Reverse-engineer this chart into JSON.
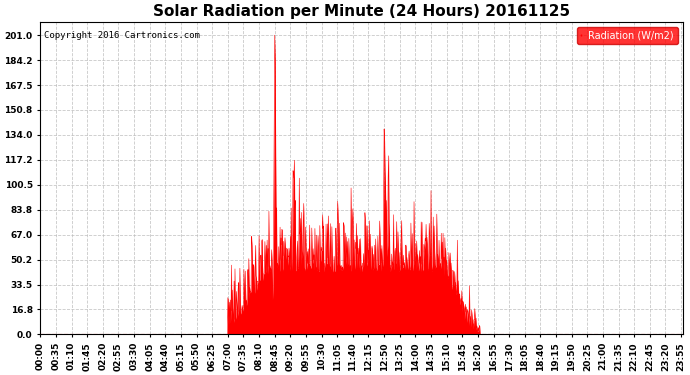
{
  "title": "Solar Radiation per Minute (24 Hours) 20161125",
  "copyright_text": "Copyright 2016 Cartronics.com",
  "ylabel": "Radiation (W/m2)",
  "yticks": [
    0.0,
    16.8,
    33.5,
    50.2,
    67.0,
    83.8,
    100.5,
    117.2,
    134.0,
    150.8,
    167.5,
    184.2,
    201.0
  ],
  "ymax": 210,
  "fill_color": "#FF0000",
  "line_color": "#FF0000",
  "background_color": "#FFFFFF",
  "grid_color": "#BBBBBB",
  "legend_box_color": "#FF0000",
  "legend_text_color": "#FFFFFF",
  "dashed_line_color": "#FF0000",
  "title_fontsize": 11,
  "tick_fontsize": 6.5,
  "x_tick_interval_minutes": 35
}
